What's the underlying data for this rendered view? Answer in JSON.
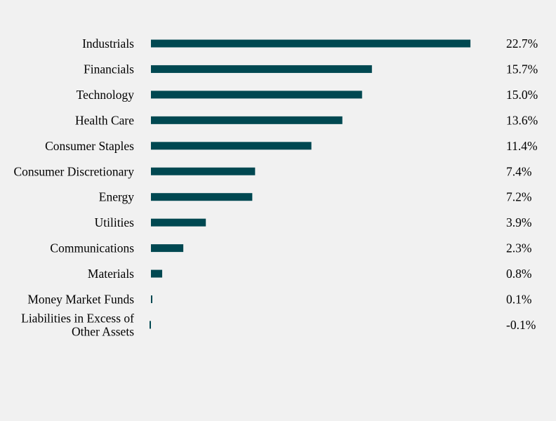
{
  "chart_data": {
    "type": "bar",
    "orientation": "horizontal",
    "categories": [
      [
        "Industrials"
      ],
      [
        "Financials"
      ],
      [
        "Technology"
      ],
      [
        "Health Care"
      ],
      [
        "Consumer Staples"
      ],
      [
        "Consumer Discretionary"
      ],
      [
        "Energy"
      ],
      [
        "Utilities"
      ],
      [
        "Communications"
      ],
      [
        "Materials"
      ],
      [
        "Money Market Funds"
      ],
      [
        "Liabilities in Excess of",
        "Other Assets"
      ]
    ],
    "values": [
      22.7,
      15.7,
      15.0,
      13.6,
      11.4,
      7.4,
      7.2,
      3.9,
      2.3,
      0.8,
      0.1,
      -0.1
    ],
    "value_labels": [
      "22.7%",
      "15.7%",
      "15.0%",
      "13.6%",
      "11.4%",
      "7.4%",
      "7.2%",
      "3.9%",
      "2.3%",
      "0.8%",
      "0.1%",
      "-0.1%"
    ],
    "bar_color": "#004851",
    "background_color": "#f1f1f1"
  }
}
